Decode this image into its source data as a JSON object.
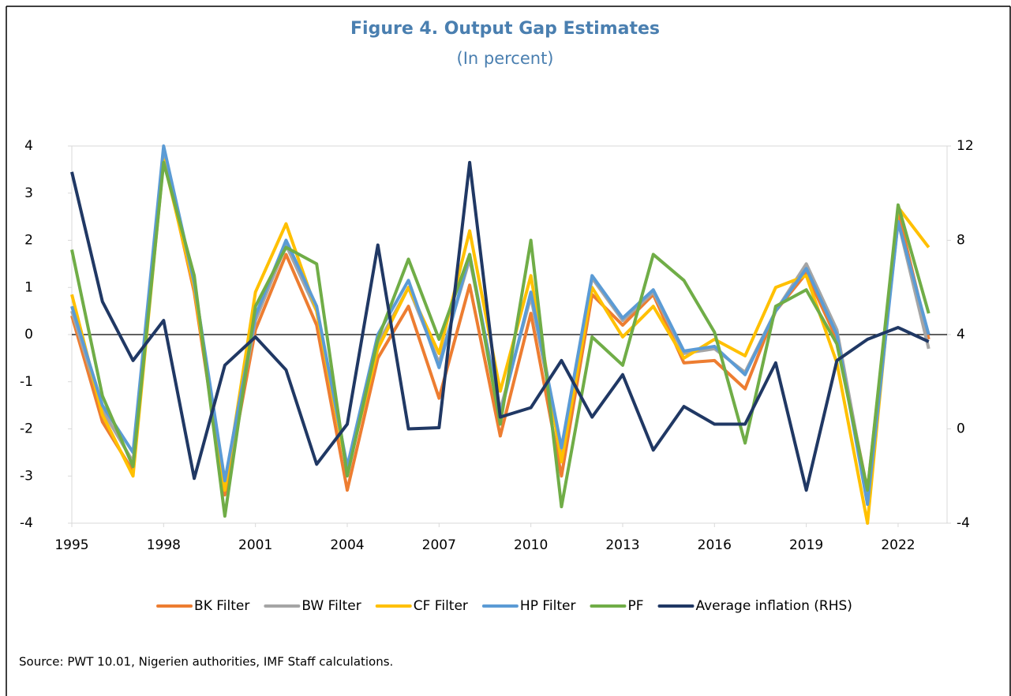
{
  "chart_data": {
    "type": "line",
    "title": "Figure 4. Output Gap Estimates",
    "subtitle": "(In percent)",
    "source": "Source: PWT 10.01, Nigerien authorities, IMF Staff calculations.",
    "x": [
      1995,
      1996,
      1997,
      1998,
      1999,
      2000,
      2001,
      2002,
      2003,
      2004,
      2005,
      2006,
      2007,
      2008,
      2009,
      2010,
      2011,
      2012,
      2013,
      2014,
      2015,
      2016,
      2017,
      2018,
      2019,
      2020,
      2021,
      2022,
      2023
    ],
    "xlim": [
      1995,
      2023.6
    ],
    "xticks": [
      1995,
      1998,
      2001,
      2004,
      2007,
      2010,
      2013,
      2016,
      2019,
      2022
    ],
    "ylim": [
      -4,
      4
    ],
    "yticks": [
      -4,
      -3,
      -2,
      -1,
      0,
      1,
      2,
      3,
      4
    ],
    "y2lim": [
      -4,
      12
    ],
    "y2ticks": [
      -4,
      0,
      4,
      8,
      12
    ],
    "legend": "bottom",
    "series": [
      {
        "name": "BK Filter",
        "color": "#ed7d31",
        "values": [
          0.4,
          -1.85,
          -2.9,
          3.8,
          0.9,
          -3.4,
          0.1,
          1.7,
          0.2,
          -3.3,
          -0.5,
          0.6,
          -1.35,
          1.05,
          -2.15,
          0.45,
          -3.0,
          0.85,
          0.2,
          0.85,
          -0.6,
          -0.55,
          -1.15,
          0.5,
          1.3,
          -0.1,
          -3.3,
          2.6,
          -0.1
        ]
      },
      {
        "name": "BW Filter",
        "color": "#a5a5a5",
        "values": [
          0.5,
          -1.6,
          -2.7,
          3.9,
          1.1,
          -3.2,
          0.3,
          1.9,
          0.5,
          -2.9,
          -0.2,
          1.0,
          -0.6,
          1.6,
          -1.6,
          0.8,
          -2.5,
          1.2,
          0.3,
          0.9,
          -0.4,
          -0.3,
          -0.8,
          0.5,
          1.5,
          0.1,
          -3.4,
          2.4,
          -0.3
        ]
      },
      {
        "name": "CF Filter",
        "color": "#ffc000",
        "values": [
          0.85,
          -1.7,
          -3.0,
          3.7,
          1.0,
          -3.3,
          0.9,
          2.35,
          0.5,
          -2.9,
          -0.3,
          1.0,
          -0.4,
          2.2,
          -1.2,
          1.25,
          -2.7,
          1.0,
          -0.05,
          0.6,
          -0.5,
          -0.1,
          -0.45,
          1.0,
          1.25,
          -0.6,
          -4.0,
          2.7,
          1.85
        ]
      },
      {
        "name": "HP Filter",
        "color": "#5b9bd5",
        "values": [
          0.6,
          -1.5,
          -2.5,
          4.0,
          1.1,
          -3.1,
          0.4,
          2.0,
          0.6,
          -2.8,
          0.0,
          1.15,
          -0.7,
          1.7,
          -1.7,
          0.9,
          -2.4,
          1.25,
          0.35,
          0.95,
          -0.35,
          -0.25,
          -0.85,
          0.5,
          1.4,
          0.0,
          -3.6,
          2.4,
          0.0
        ]
      },
      {
        "name": "PF",
        "color": "#70ad47",
        "values": [
          1.8,
          -1.3,
          -2.8,
          3.65,
          1.25,
          -3.85,
          0.6,
          1.85,
          1.5,
          -3.0,
          -0.1,
          1.6,
          -0.1,
          1.7,
          -1.9,
          2.0,
          -3.65,
          -0.05,
          -0.65,
          1.7,
          1.15,
          0.05,
          -2.3,
          0.6,
          0.95,
          -0.2,
          -3.3,
          2.75,
          0.45
        ]
      },
      {
        "name": "Average inflation (RHS)",
        "color": "#203864",
        "axis": "y2",
        "values": [
          10.9,
          5.4,
          2.9,
          4.6,
          -2.1,
          2.7,
          3.9,
          2.5,
          -1.5,
          0.2,
          7.8,
          0.0,
          0.05,
          11.3,
          0.5,
          0.9,
          2.9,
          0.5,
          2.3,
          -0.9,
          0.95,
          0.2,
          0.2,
          2.8,
          -2.6,
          2.9,
          3.8,
          4.3,
          3.7
        ]
      }
    ]
  }
}
